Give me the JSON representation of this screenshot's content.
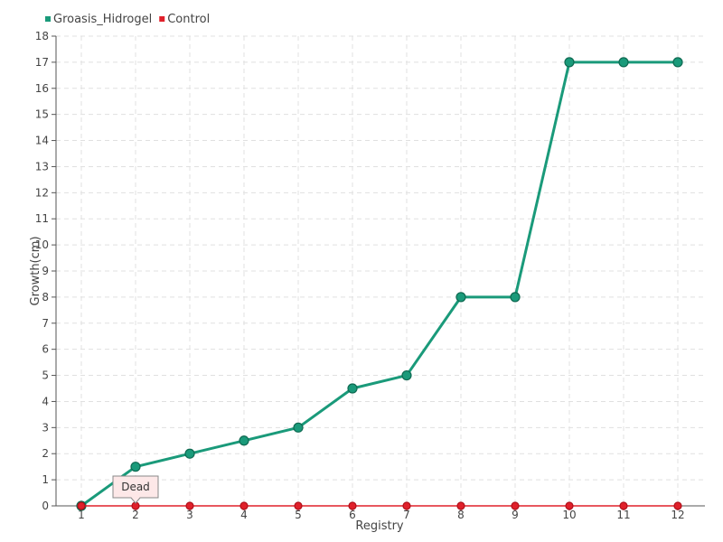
{
  "chart_data": {
    "type": "line",
    "x": [
      1,
      2,
      3,
      4,
      5,
      6,
      7,
      8,
      9,
      10,
      11,
      12
    ],
    "xlabel": "Registry",
    "ylabel": "Growth(cm)",
    "ylim": [
      0,
      18
    ],
    "y_ticks": [
      0,
      1,
      2,
      3,
      4,
      5,
      6,
      7,
      8,
      9,
      10,
      11,
      12,
      13,
      14,
      15,
      16,
      17,
      18
    ],
    "grid": true,
    "legend_position": "top-left",
    "series": [
      {
        "name": "Groasis_Hidrogel",
        "color": "#1a9a7a",
        "values": [
          0,
          1.5,
          2,
          2.5,
          3,
          4.5,
          5,
          8,
          8,
          17,
          17,
          17
        ]
      },
      {
        "name": "Control",
        "color": "#e0202a",
        "values": [
          0,
          0,
          0,
          0,
          0,
          0,
          0,
          0,
          0,
          0,
          0,
          0
        ]
      }
    ],
    "tooltip": {
      "x": 2,
      "text": "Dead"
    }
  }
}
